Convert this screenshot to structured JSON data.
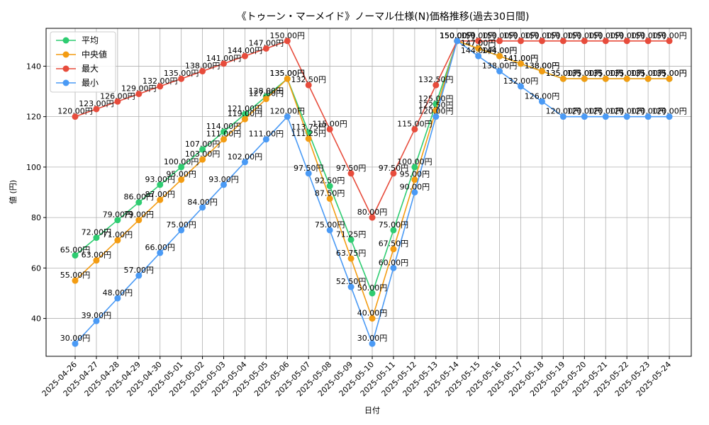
{
  "chart_data": {
    "type": "line",
    "title": "《トゥーン・マーメイド》ノーマル仕様(N)価格推移(過去30日間)",
    "xlabel": "日付",
    "ylabel": "値 (円)",
    "ylim": [
      25,
      155
    ],
    "yticks": [
      40,
      60,
      80,
      100,
      120,
      140
    ],
    "grid": true,
    "legend_position": "top-left",
    "label_suffix": "円",
    "categories": [
      "2025-04-26",
      "2025-04-27",
      "2025-04-28",
      "2025-04-29",
      "2025-04-30",
      "2025-05-01",
      "2025-05-02",
      "2025-05-03",
      "2025-05-04",
      "2025-05-05",
      "2025-05-06",
      "2025-05-07",
      "2025-05-08",
      "2025-05-09",
      "2025-05-10",
      "2025-05-11",
      "2025-05-12",
      "2025-05-13",
      "2025-05-14",
      "2025-05-15",
      "2025-05-16",
      "2025-05-17",
      "2025-05-18",
      "2025-05-19",
      "2025-05-20",
      "2025-05-21",
      "2025-05-22",
      "2025-05-23",
      "2025-05-24"
    ],
    "series": [
      {
        "name": "平均",
        "color": "#2ecc71",
        "values": [
          65,
          72,
          79,
          86,
          93,
          100,
          107,
          114,
          121,
          128,
          135,
          113.75,
          92.5,
          71.25,
          50,
          75,
          100,
          125,
          150,
          147,
          144,
          141,
          138,
          135,
          135,
          135,
          135,
          135,
          135
        ]
      },
      {
        "name": "中央値",
        "color": "#f39c12",
        "values": [
          55,
          63,
          71,
          79,
          87,
          95,
          103,
          111,
          119,
          127,
          135,
          111.25,
          87.5,
          63.75,
          40,
          67.5,
          95,
          122.5,
          150,
          147,
          144,
          141,
          138,
          135,
          135,
          135,
          135,
          135,
          135
        ]
      },
      {
        "name": "最大",
        "color": "#e74c3c",
        "values": [
          120,
          123,
          126,
          129,
          132,
          135,
          138,
          141,
          144,
          147,
          150,
          132.5,
          115,
          97.5,
          80,
          97.5,
          115,
          132.5,
          150,
          150,
          150,
          150,
          150,
          150,
          150,
          150,
          150,
          150,
          150
        ]
      },
      {
        "name": "最小",
        "color": "#4a9af5",
        "values": [
          30,
          39,
          48,
          57,
          66,
          75,
          84,
          93,
          102,
          111,
          120,
          97.5,
          75,
          52.5,
          30,
          60,
          90,
          120,
          150,
          144,
          138,
          132,
          126,
          120,
          120,
          120,
          120,
          120,
          120
        ]
      }
    ]
  }
}
